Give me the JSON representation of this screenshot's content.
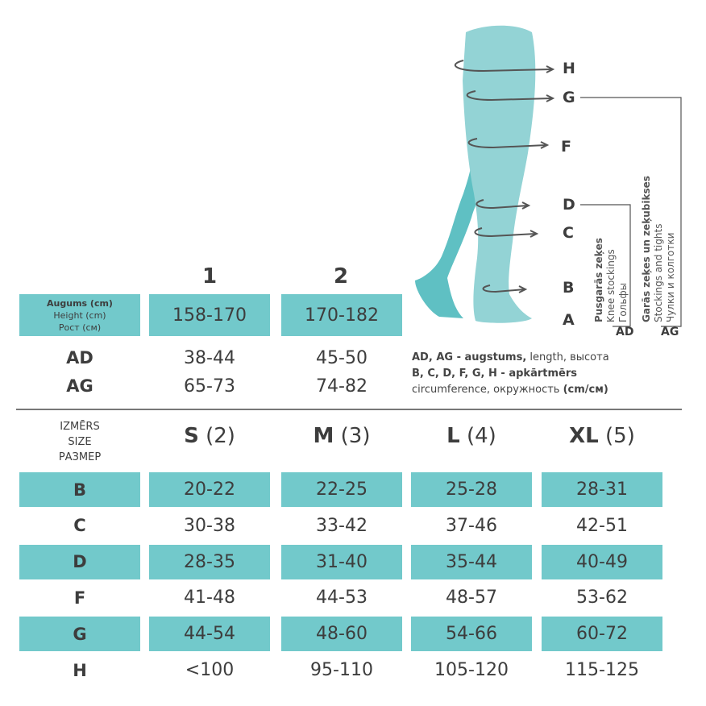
{
  "diagram": {
    "points": [
      "H",
      "G",
      "F",
      "D",
      "C",
      "B",
      "A"
    ],
    "knee_group": {
      "label": "AD",
      "lines": [
        "Pusgarās zeķes",
        "Knee stockings",
        "Гольфы"
      ]
    },
    "long_group": {
      "label": "AG",
      "lines": [
        "Garās zeķes un zeķubikses",
        "Stockings and tights",
        "Чулки и колготки"
      ]
    },
    "leg_colors": {
      "front": "#93d3d5",
      "back": "#5fc0c3"
    }
  },
  "height_table": {
    "columns": [
      "1",
      "2"
    ],
    "height_label": [
      "Augums (cm)",
      "Height (cm)",
      "Рост (см)"
    ],
    "heights": [
      "158-170",
      "170-182"
    ],
    "rows": [
      {
        "label": "AD",
        "values": [
          "38-44",
          "45-50"
        ]
      },
      {
        "label": "AG",
        "values": [
          "65-73",
          "74-82"
        ]
      }
    ]
  },
  "legend": {
    "line1_bold": "AD, AG - augstums,",
    "line1_rest": " length, высота",
    "line2": "B, C, D, F, G, H - apkārtmērs",
    "line3": "circumference, окружность ",
    "line3_bold": "(cm/см)"
  },
  "size_table": {
    "size_label": [
      "IZMĒRS",
      "SIZE",
      "РАЗМЕР"
    ],
    "sizes": [
      {
        "letter": "S",
        "num": "(2)"
      },
      {
        "letter": "M",
        "num": "(3)"
      },
      {
        "letter": "L",
        "num": "(4)"
      },
      {
        "letter": "XL",
        "num": "(5)"
      }
    ],
    "rows": [
      {
        "label": "B",
        "values": [
          "20-22",
          "22-25",
          "25-28",
          "28-31"
        ]
      },
      {
        "label": "C",
        "values": [
          "30-38",
          "33-42",
          "37-46",
          "42-51"
        ]
      },
      {
        "label": "D",
        "values": [
          "28-35",
          "31-40",
          "35-44",
          "40-49"
        ]
      },
      {
        "label": "F",
        "values": [
          "41-48",
          "44-53",
          "48-57",
          "53-62"
        ]
      },
      {
        "label": "G",
        "values": [
          "44-54",
          "48-60",
          "54-66",
          "60-72"
        ]
      },
      {
        "label": "H",
        "values": [
          "<100",
          "95-110",
          "105-120",
          "115-125"
        ]
      }
    ]
  },
  "colors": {
    "accent": "#72c9cb",
    "text": "#3d3d3d"
  }
}
